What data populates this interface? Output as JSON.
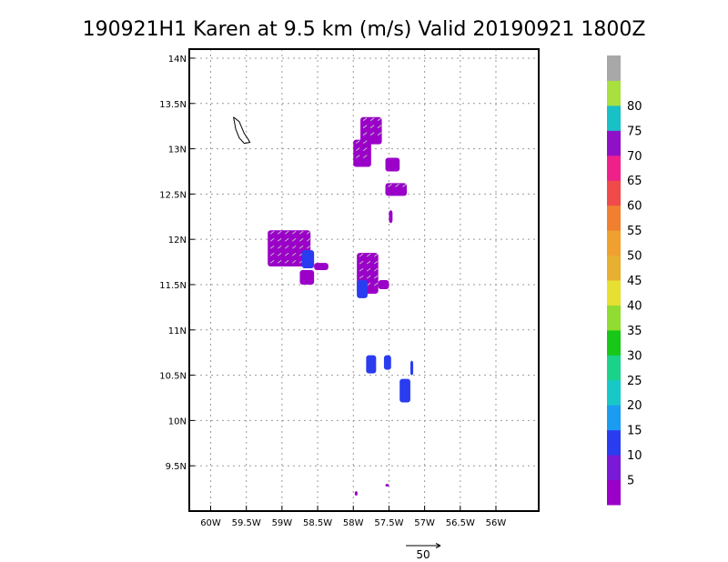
{
  "chart_data": {
    "type": "heatmap",
    "title": "190921H1 Karen at 9.5 km (m/s) Valid 20190921  1800Z",
    "xlabel": "",
    "ylabel": "",
    "xlim": [
      -60.3,
      -55.4
    ],
    "ylim": [
      9.0,
      14.1
    ],
    "grid": true,
    "x_ticks": [
      {
        "value": -60.0,
        "label": "60W"
      },
      {
        "value": -59.5,
        "label": "59.5W"
      },
      {
        "value": -59.0,
        "label": "59W"
      },
      {
        "value": -58.5,
        "label": "58.5W"
      },
      {
        "value": -58.0,
        "label": "58W"
      },
      {
        "value": -57.5,
        "label": "57.5W"
      },
      {
        "value": -57.0,
        "label": "57W"
      },
      {
        "value": -56.5,
        "label": "56.5W"
      },
      {
        "value": -56.0,
        "label": "56W"
      }
    ],
    "y_ticks": [
      {
        "value": 9.5,
        "label": "9.5N"
      },
      {
        "value": 10.0,
        "label": "10N"
      },
      {
        "value": 10.5,
        "label": "10.5N"
      },
      {
        "value": 11.0,
        "label": "11N"
      },
      {
        "value": 11.5,
        "label": "11.5N"
      },
      {
        "value": 12.0,
        "label": "12N"
      },
      {
        "value": 12.5,
        "label": "12.5N"
      },
      {
        "value": 13.0,
        "label": "13N"
      },
      {
        "value": 13.5,
        "label": "13.5N"
      },
      {
        "value": 14.0,
        "label": "14N"
      }
    ],
    "colorbar": {
      "bins": [
        {
          "min": 0,
          "max": 5,
          "color": "#9a00c8"
        },
        {
          "min": 5,
          "max": 10,
          "color": "#7a1ad6"
        },
        {
          "min": 10,
          "max": 15,
          "color": "#2a3cf0"
        },
        {
          "min": 15,
          "max": 20,
          "color": "#1a9cf0"
        },
        {
          "min": 20,
          "max": 25,
          "color": "#18c8c8"
        },
        {
          "min": 25,
          "max": 30,
          "color": "#1ad28a"
        },
        {
          "min": 30,
          "max": 35,
          "color": "#18c818"
        },
        {
          "min": 35,
          "max": 40,
          "color": "#90dc30"
        },
        {
          "min": 40,
          "max": 45,
          "color": "#e8e030"
        },
        {
          "min": 45,
          "max": 50,
          "color": "#e8b030"
        },
        {
          "min": 50,
          "max": 55,
          "color": "#f0a030"
        },
        {
          "min": 55,
          "max": 60,
          "color": "#f08030"
        },
        {
          "min": 60,
          "max": 65,
          "color": "#f04a4a"
        },
        {
          "min": 65,
          "max": 70,
          "color": "#f0208a"
        },
        {
          "min": 70,
          "max": 75,
          "color": "#9010c8"
        },
        {
          "min": 75,
          "max": 80,
          "color": "#18c0c8"
        },
        {
          "min": 80,
          "max": 85,
          "color": "#a8e040"
        },
        {
          "min": 85,
          "max": 90,
          "color": "#a8a8a8"
        }
      ],
      "labels": [
        "5",
        "10",
        "15",
        "20",
        "25",
        "30",
        "35",
        "40",
        "45",
        "50",
        "55",
        "60",
        "65",
        "70",
        "75",
        "80"
      ]
    },
    "reference_vector": {
      "label": "50",
      "value": 50
    },
    "wind_regions": [
      {
        "lon": [
          -59.2,
          -58.6
        ],
        "lat": [
          11.7,
          12.1
        ],
        "speed": 3,
        "with_vectors": true
      },
      {
        "lon": [
          -58.72,
          -58.55
        ],
        "lat": [
          11.68,
          11.88
        ],
        "speed": 12,
        "with_vectors": false
      },
      {
        "lon": [
          -58.55,
          -58.35
        ],
        "lat": [
          11.66,
          11.74
        ],
        "speed": 3,
        "with_vectors": false
      },
      {
        "lon": [
          -58.75,
          -58.55
        ],
        "lat": [
          11.5,
          11.66
        ],
        "speed": 3,
        "with_vectors": false
      },
      {
        "lon": [
          -57.95,
          -57.65
        ],
        "lat": [
          11.4,
          11.85
        ],
        "speed": 3,
        "with_vectors": true
      },
      {
        "lon": [
          -57.95,
          -57.8
        ],
        "lat": [
          11.35,
          11.55
        ],
        "speed": 12,
        "with_vectors": false
      },
      {
        "lon": [
          -57.65,
          -57.5
        ],
        "lat": [
          11.45,
          11.55
        ],
        "speed": 3,
        "with_vectors": false
      },
      {
        "lon": [
          -57.9,
          -57.6
        ],
        "lat": [
          13.05,
          13.35
        ],
        "speed": 3,
        "with_vectors": true
      },
      {
        "lon": [
          -58.0,
          -57.75
        ],
        "lat": [
          12.8,
          13.1
        ],
        "speed": 3,
        "with_vectors": true
      },
      {
        "lon": [
          -57.55,
          -57.35
        ],
        "lat": [
          12.75,
          12.9
        ],
        "speed": 3,
        "with_vectors": false
      },
      {
        "lon": [
          -57.55,
          -57.25
        ],
        "lat": [
          12.48,
          12.62
        ],
        "speed": 3,
        "with_vectors": true
      },
      {
        "lon": [
          -57.5,
          -57.45
        ],
        "lat": [
          12.18,
          12.32
        ],
        "speed": 3,
        "with_vectors": false
      },
      {
        "lon": [
          -57.82,
          -57.68
        ],
        "lat": [
          10.52,
          10.72
        ],
        "speed": 12,
        "with_vectors": false
      },
      {
        "lon": [
          -57.57,
          -57.47
        ],
        "lat": [
          10.56,
          10.72
        ],
        "speed": 12,
        "with_vectors": false
      },
      {
        "lon": [
          -57.35,
          -57.2
        ],
        "lat": [
          10.2,
          10.46
        ],
        "speed": 12,
        "with_vectors": false
      },
      {
        "lon": [
          -57.2,
          -57.16
        ],
        "lat": [
          10.5,
          10.66
        ],
        "speed": 12,
        "with_vectors": false
      },
      {
        "lon": [
          -57.98,
          -57.94
        ],
        "lat": [
          9.17,
          9.22
        ],
        "speed": 3,
        "with_vectors": false
      },
      {
        "lon": [
          -57.55,
          -57.5
        ],
        "lat": [
          9.27,
          9.3
        ],
        "speed": 3,
        "with_vectors": false
      }
    ],
    "coastline": [
      [
        -59.68,
        13.35
      ],
      [
        -59.6,
        13.3
      ],
      [
        -59.53,
        13.17
      ],
      [
        -59.47,
        13.1
      ],
      [
        -59.45,
        13.07
      ],
      [
        -59.53,
        13.06
      ],
      [
        -59.6,
        13.12
      ],
      [
        -59.65,
        13.22
      ],
      [
        -59.68,
        13.35
      ]
    ]
  }
}
